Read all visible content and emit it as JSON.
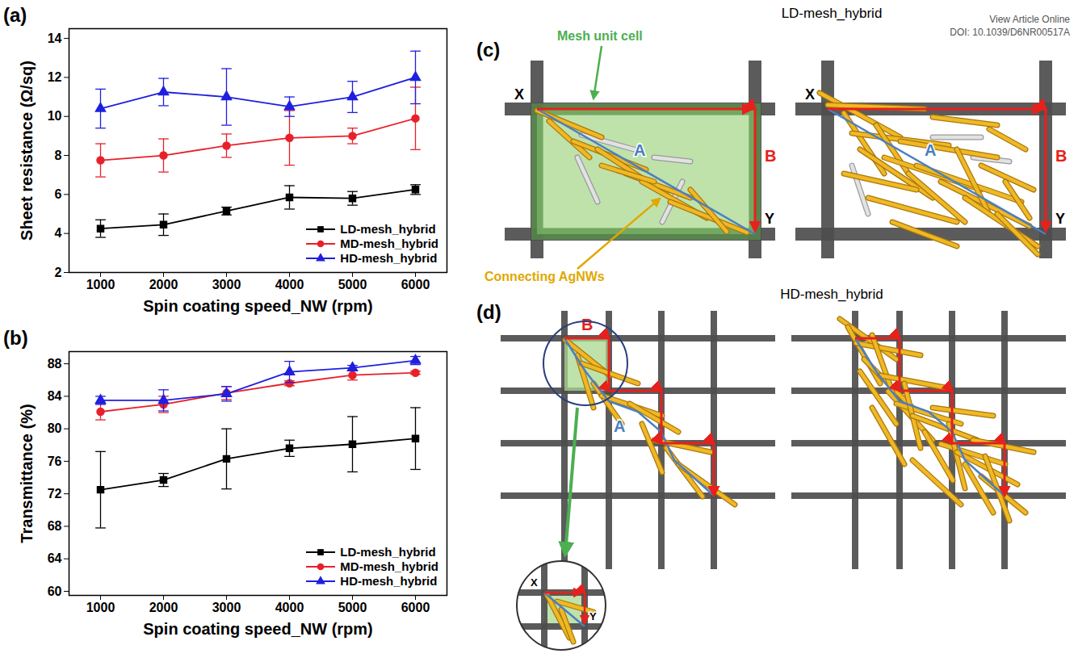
{
  "chart_data": [
    {
      "type": "line",
      "panel": "(a)",
      "x_label": "Spin coating speed_NW (rpm)",
      "y_label": "Sheet resistance (Ω/sq)",
      "x": [
        1000,
        2000,
        3000,
        4000,
        5000,
        6000
      ],
      "xlim": [
        500,
        6500
      ],
      "xticks": [
        1000,
        2000,
        3000,
        4000,
        5000,
        6000
      ],
      "ylim": [
        2,
        14.5
      ],
      "yticks": [
        2,
        4,
        6,
        8,
        10,
        12,
        14
      ],
      "legend": "lower right",
      "series": [
        {
          "name": "LD-mesh_hybrid",
          "color": "#000000",
          "marker": "square",
          "values": [
            4.25,
            4.45,
            5.15,
            5.85,
            5.8,
            6.25
          ],
          "errors": [
            0.45,
            0.55,
            0.2,
            0.6,
            0.35,
            0.25
          ]
        },
        {
          "name": "MD-mesh_hybrid",
          "color": "#e8202a",
          "marker": "circle",
          "values": [
            7.75,
            8.0,
            8.5,
            8.9,
            9.0,
            9.9
          ],
          "errors": [
            0.85,
            0.85,
            0.6,
            1.4,
            0.4,
            1.6
          ]
        },
        {
          "name": "HD-mesh_hybrid",
          "color": "#1f1fe0",
          "marker": "triangle",
          "values": [
            10.4,
            11.25,
            11.0,
            10.5,
            11.0,
            12.0
          ],
          "errors": [
            1.0,
            0.7,
            1.45,
            0.5,
            0.8,
            1.35
          ]
        }
      ]
    },
    {
      "type": "line",
      "panel": "(b)",
      "x_label": "Spin coating speed_NW (rpm)",
      "y_label": "Transmittance (%)",
      "x": [
        1000,
        2000,
        3000,
        4000,
        5000,
        6000
      ],
      "xlim": [
        500,
        6500
      ],
      "xticks": [
        1000,
        2000,
        3000,
        4000,
        5000,
        6000
      ],
      "ylim": [
        59.5,
        89.5
      ],
      "yticks": [
        60,
        64,
        68,
        72,
        76,
        80,
        84,
        88
      ],
      "legend": "lower right",
      "series": [
        {
          "name": "LD-mesh_hybrid",
          "color": "#000000",
          "marker": "square",
          "values": [
            72.5,
            73.7,
            76.3,
            77.6,
            78.1,
            78.8
          ],
          "errors": [
            4.7,
            0.8,
            3.7,
            1.0,
            3.4,
            3.8
          ]
        },
        {
          "name": "MD-mesh_hybrid",
          "color": "#e8202a",
          "marker": "circle",
          "values": [
            82.1,
            83.0,
            84.4,
            85.6,
            86.6,
            86.9
          ],
          "errors": [
            1.0,
            1.0,
            0.8,
            0.3,
            0.6,
            0.2
          ]
        },
        {
          "name": "HD-mesh_hybrid",
          "color": "#1f1fe0",
          "marker": "triangle",
          "values": [
            83.5,
            83.5,
            84.3,
            87.0,
            87.5,
            88.4
          ],
          "errors": [
            0.5,
            1.3,
            0.9,
            1.3,
            0.3,
            0.5
          ]
        }
      ]
    }
  ],
  "header": [
    "View Article Online",
    "DOI: 10.1039/D6NR00517A"
  ],
  "diagrams": {
    "c": {
      "panel": "(c)",
      "title": "LD-mesh_hybrid",
      "mesh_label": "Mesh unit cell",
      "nw_label": "Connecting AgNWs",
      "corners": [
        "X",
        "Y"
      ],
      "paths": [
        "A",
        "B"
      ]
    },
    "d": {
      "panel": "(d)",
      "title": "HD-mesh_hybrid",
      "corners": [
        "X",
        "Y"
      ],
      "paths": [
        "A",
        "B"
      ]
    }
  }
}
